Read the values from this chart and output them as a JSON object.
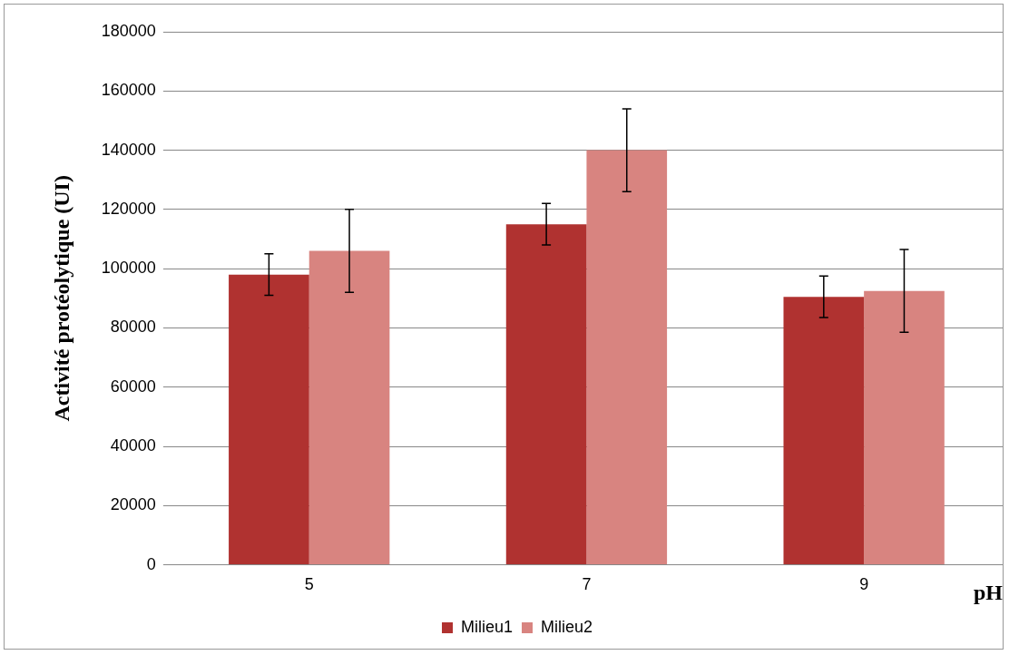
{
  "chart_data": {
    "type": "bar",
    "xlabel": "pH",
    "ylabel": "Activité protéolytique (UI)",
    "categories": [
      "5",
      "7",
      "9"
    ],
    "series": [
      {
        "name": "Milieu1",
        "color": "#b03230",
        "values": [
          98000,
          115000,
          90500
        ],
        "errors": [
          7000,
          7000,
          7000
        ]
      },
      {
        "name": "Milieu2",
        "color": "#d88480",
        "values": [
          106000,
          140000,
          92500
        ],
        "errors": [
          14000,
          14000,
          14000
        ]
      }
    ],
    "ylim": [
      0,
      180000
    ],
    "yticks": [
      0,
      20000,
      40000,
      60000,
      80000,
      100000,
      120000,
      140000,
      160000,
      180000
    ],
    "grid": "y",
    "legend": "bottom"
  }
}
